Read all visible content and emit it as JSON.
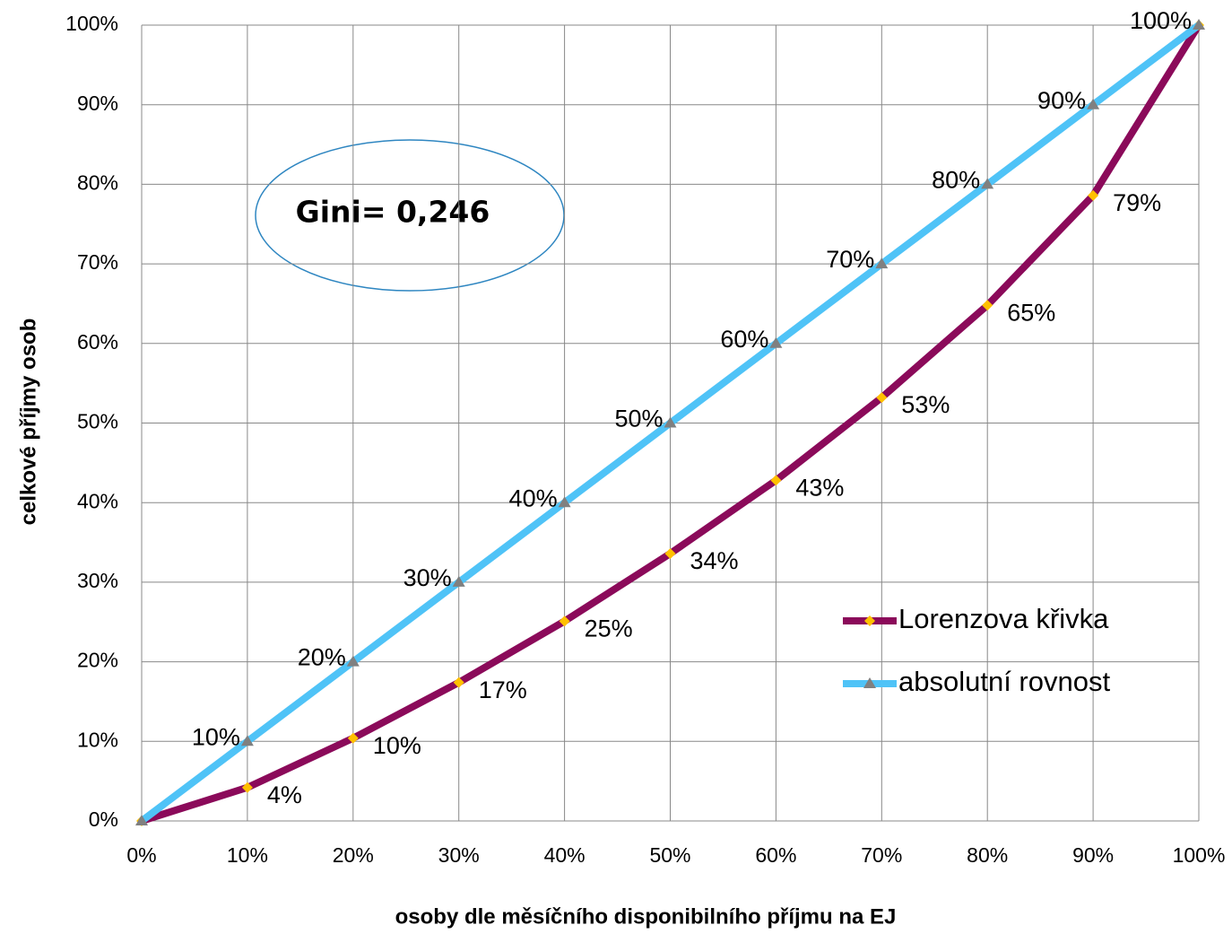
{
  "chart_data": {
    "type": "line",
    "xlabel": "osoby dle měsíčního disponibilního příjmu na EJ",
    "ylabel": "celkové příjmy osob",
    "annotation": "Gini= 0,246",
    "x": [
      0,
      10,
      20,
      30,
      40,
      50,
      60,
      70,
      80,
      90,
      100
    ],
    "series": [
      {
        "name": "Lorenzova křivka",
        "color": "#8b0a5a",
        "marker_color": "#ffc000",
        "values": [
          0,
          4.2,
          10.4,
          17.4,
          25.1,
          33.6,
          42.8,
          53.2,
          64.8,
          78.6,
          100
        ],
        "value_labels": [
          null,
          "4%",
          "10%",
          "17%",
          "25%",
          "34%",
          "43%",
          "53%",
          "65%",
          "79%",
          null
        ]
      },
      {
        "name": "absolutní rovnost",
        "color": "#4fc3f7",
        "marker_color": "#808080",
        "values": [
          0,
          10,
          20,
          30,
          40,
          50,
          60,
          70,
          80,
          90,
          100
        ],
        "value_labels": [
          null,
          "10%",
          "20%",
          "30%",
          "40%",
          "50%",
          "60%",
          "70%",
          "80%",
          "90%",
          "100%"
        ]
      }
    ],
    "xlim": [
      0,
      100
    ],
    "ylim": [
      0,
      100
    ],
    "xticks": [
      {
        "value": 0,
        "label": "0%"
      },
      {
        "value": 10,
        "label": "10%"
      },
      {
        "value": 20,
        "label": "20%"
      },
      {
        "value": 30,
        "label": "30%"
      },
      {
        "value": 40,
        "label": "40%"
      },
      {
        "value": 50,
        "label": "50%"
      },
      {
        "value": 60,
        "label": "60%"
      },
      {
        "value": 70,
        "label": "70%"
      },
      {
        "value": 80,
        "label": "80%"
      },
      {
        "value": 90,
        "label": "90%"
      },
      {
        "value": 100,
        "label": "100%"
      }
    ],
    "yticks": [
      {
        "value": 0,
        "label": "0%"
      },
      {
        "value": 10,
        "label": "10%"
      },
      {
        "value": 20,
        "label": "20%"
      },
      {
        "value": 30,
        "label": "30%"
      },
      {
        "value": 40,
        "label": "40%"
      },
      {
        "value": 50,
        "label": "50%"
      },
      {
        "value": 60,
        "label": "60%"
      },
      {
        "value": 70,
        "label": "70%"
      },
      {
        "value": 80,
        "label": "80%"
      },
      {
        "value": 90,
        "label": "90%"
      },
      {
        "value": 100,
        "label": "100%"
      }
    ],
    "grid": true,
    "legend": "lower right"
  }
}
